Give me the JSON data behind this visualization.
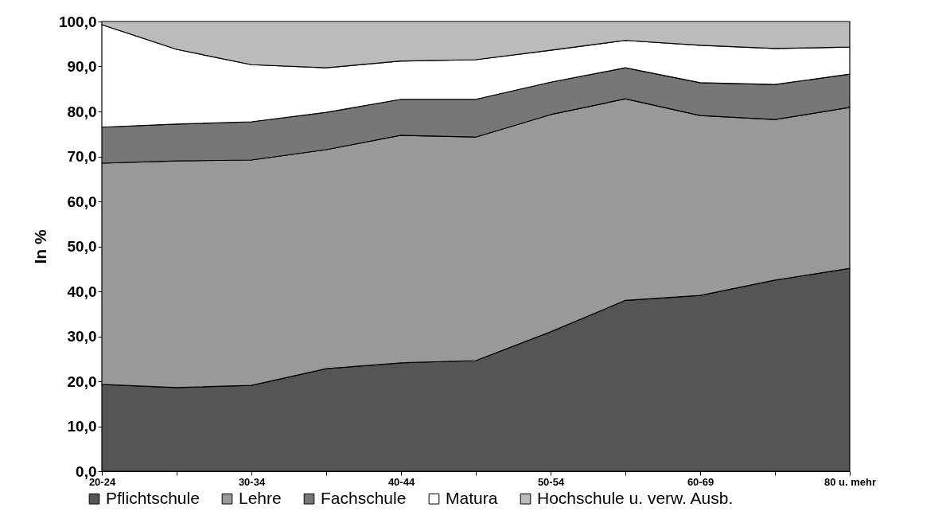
{
  "chart_data": {
    "type": "area",
    "stacked": true,
    "ylabel": "In %",
    "categories": [
      "20-24",
      null,
      "30-34",
      null,
      "40-44",
      null,
      "50-54",
      null,
      "60-69",
      null,
      "80 u. mehr"
    ],
    "series": [
      {
        "name": "Pflichtschule",
        "color": "#555555",
        "values": [
          19.3,
          18.6,
          19.1,
          22.8,
          24.1,
          24.6,
          31.0,
          38.0,
          39.1,
          42.5,
          45.1
        ]
      },
      {
        "name": "Lehre",
        "color": "#999999",
        "values": [
          49.2,
          50.4,
          50.1,
          48.7,
          50.6,
          49.7,
          48.3,
          44.8,
          40.0,
          35.7,
          35.8
        ]
      },
      {
        "name": "Fachschule",
        "color": "#777777",
        "values": [
          8.0,
          8.2,
          8.5,
          8.3,
          8.0,
          8.4,
          7.2,
          6.9,
          7.3,
          7.8,
          7.4
        ]
      },
      {
        "name": "Matura",
        "color": "#ffffff",
        "values": [
          22.8,
          16.6,
          12.7,
          9.9,
          8.5,
          8.8,
          7.1,
          6.1,
          8.3,
          8.0,
          6.0
        ]
      },
      {
        "name": "Hochschule u. verw. Ausb.",
        "color": "#bbbbbb",
        "values": [
          0.7,
          6.2,
          9.6,
          10.3,
          8.8,
          8.5,
          6.4,
          4.2,
          5.3,
          6.0,
          5.7
        ]
      }
    ],
    "ylim": [
      0,
      100
    ],
    "yticks": [
      {
        "value": 0,
        "label": "0,0"
      },
      {
        "value": 10,
        "label": "10,0"
      },
      {
        "value": 20,
        "label": "20,0"
      },
      {
        "value": 30,
        "label": "30,0"
      },
      {
        "value": 40,
        "label": "40,0"
      },
      {
        "value": 50,
        "label": "50,0"
      },
      {
        "value": 60,
        "label": "60,0"
      },
      {
        "value": 70,
        "label": "70,0"
      },
      {
        "value": 80,
        "label": "80,0"
      },
      {
        "value": 90,
        "label": "90,0"
      },
      {
        "value": 100,
        "label": "100,0"
      }
    ],
    "grid": false,
    "legend": "bottom"
  }
}
